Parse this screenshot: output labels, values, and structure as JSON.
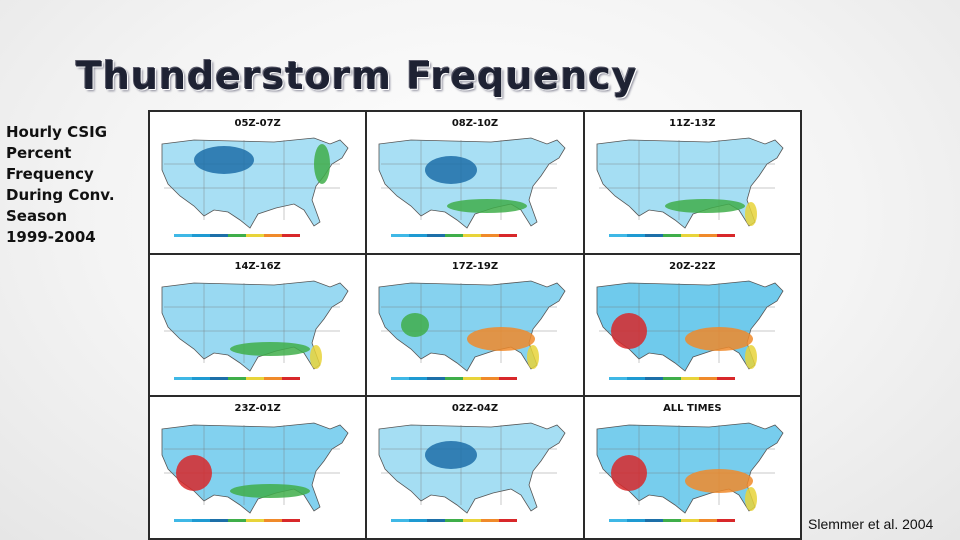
{
  "slide": {
    "title": "Thunderstorm Frequency",
    "subtitle": "Hourly CSIG\nPercent\nFrequency\nDuring Conv.\nSeason\n1999-2004",
    "credit": "Slemmer et al. 2004"
  },
  "maps": [
    {
      "label": "05Z-07Z",
      "intensity": 0.25,
      "hotspots": [
        "northern-plains",
        "mid-atlantic-coast"
      ]
    },
    {
      "label": "08Z-10Z",
      "intensity": 0.25,
      "hotspots": [
        "central-plains",
        "gulf-coast"
      ]
    },
    {
      "label": "11Z-13Z",
      "intensity": 0.3,
      "hotspots": [
        "gulf-coast",
        "florida"
      ]
    },
    {
      "label": "14Z-16Z",
      "intensity": 0.45,
      "hotspots": [
        "gulf-coast",
        "florida"
      ]
    },
    {
      "label": "17Z-19Z",
      "intensity": 0.7,
      "hotspots": [
        "southeast",
        "florida",
        "four-corners"
      ]
    },
    {
      "label": "20Z-22Z",
      "intensity": 1.0,
      "hotspots": [
        "southwest",
        "southeast",
        "florida"
      ]
    },
    {
      "label": "23Z-01Z",
      "intensity": 0.75,
      "hotspots": [
        "southwest",
        "gulf-coast"
      ]
    },
    {
      "label": "02Z-04Z",
      "intensity": 0.3,
      "hotspots": [
        "central-plains"
      ]
    },
    {
      "label": "ALL TIMES",
      "intensity": 0.9,
      "hotspots": [
        "southwest",
        "southeast",
        "florida"
      ]
    }
  ],
  "colors": {
    "low": "#3fb8e6",
    "mid": "#1e9ad2",
    "dark": "#1d6fa8",
    "green": "#3fae4a",
    "yellow": "#e8d43a",
    "orange": "#f08a2a",
    "red": "#d8282a"
  }
}
